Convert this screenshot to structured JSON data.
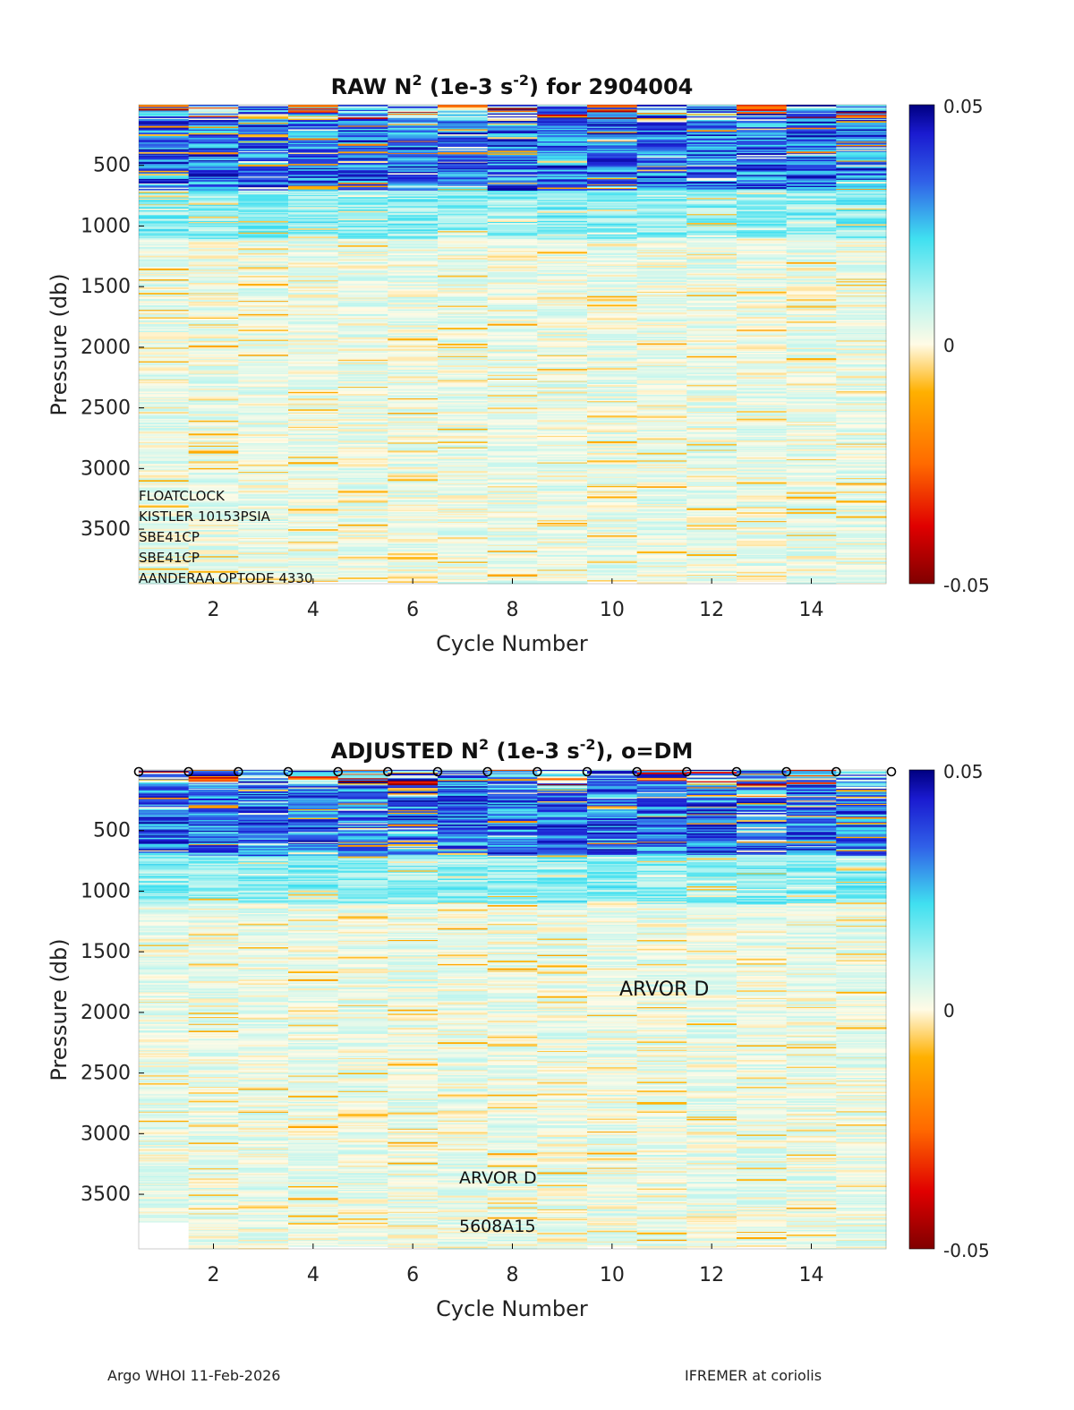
{
  "chart_data": [
    {
      "type": "heatmap",
      "title": {
        "main": "RAW N",
        "sup": "2",
        "mid": " (1e-3 s",
        "sup2": "-2",
        "end": ") for 2904004"
      },
      "xlabel": "Cycle Number",
      "ylabel": "Pressure (db)",
      "xlim": [
        1,
        15
      ],
      "ylim": [
        3950,
        0
      ],
      "xticks": [
        2,
        4,
        6,
        8,
        10,
        12,
        14
      ],
      "yticks": [
        500,
        1000,
        1500,
        2000,
        2500,
        3000,
        3500
      ],
      "cycles": [
        1,
        2,
        3,
        4,
        5,
        6,
        7,
        8,
        9,
        10,
        11,
        12,
        13,
        14,
        15
      ],
      "max_pressure": [
        3950,
        3950,
        3950,
        3930,
        3930,
        3940,
        3950,
        3950,
        3950,
        3930,
        3950,
        3940,
        3930,
        3950,
        3950
      ],
      "colorbar": {
        "min": -0.05,
        "max": 0.05,
        "ticks": [
          "0.05",
          "0",
          "-0.05"
        ]
      },
      "annotations": [
        "FLOATCLOCK",
        "KISTLER 10153PSIA",
        "SBE41CP",
        "SBE41CP",
        "AANDERAA OPTODE 4330"
      ],
      "dm_markers": []
    },
    {
      "type": "heatmap",
      "title": {
        "main": "ADJUSTED N",
        "sup": "2",
        "mid": " (1e-3 s",
        "sup2": "-2",
        "end": "), o=DM"
      },
      "xlabel": "Cycle Number",
      "ylabel": "Pressure (db)",
      "xlim": [
        1,
        15
      ],
      "ylim": [
        3950,
        0
      ],
      "xticks": [
        2,
        4,
        6,
        8,
        10,
        12,
        14
      ],
      "yticks": [
        500,
        1000,
        1500,
        2000,
        2500,
        3000,
        3500
      ],
      "cycles": [
        1,
        2,
        3,
        4,
        5,
        6,
        7,
        8,
        9,
        10,
        11,
        12,
        13,
        14,
        15
      ],
      "max_pressure": [
        3730,
        3950,
        3950,
        3930,
        3930,
        3940,
        3950,
        3950,
        3950,
        3930,
        3950,
        3940,
        3930,
        3950,
        3950
      ],
      "colorbar": {
        "min": -0.05,
        "max": 0.05,
        "ticks": [
          "0.05",
          "0",
          "-0.05"
        ]
      },
      "annotations": [
        "ARVOR D",
        "ARVOR D",
        "5608A15"
      ],
      "dm_markers": [
        1,
        2,
        3,
        4,
        5,
        6,
        7,
        8,
        9,
        10,
        11,
        12,
        13,
        14,
        15
      ],
      "dm_symbol": "o"
    }
  ],
  "footer": {
    "left": "Argo WHOI 11-Feb-2026",
    "right": "IFREMER at coriolis"
  }
}
